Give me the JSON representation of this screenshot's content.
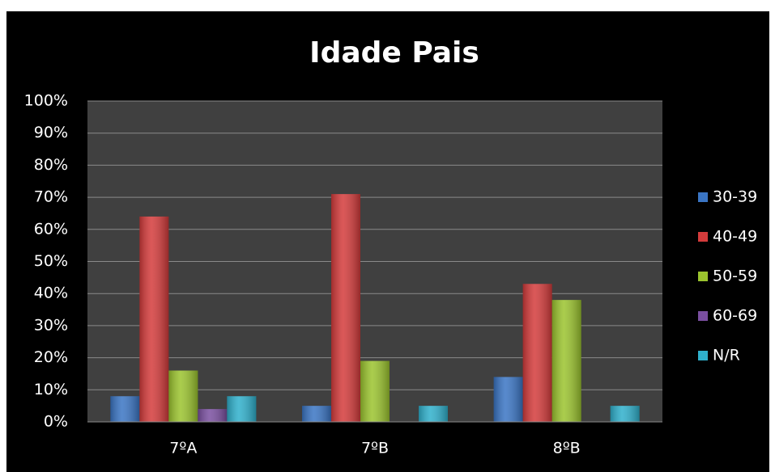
{
  "chart_data": {
    "type": "bar",
    "title": "Idade Pais",
    "categories": [
      "7ºA",
      "7ºB",
      "8ºB"
    ],
    "series": [
      {
        "name": "30-39",
        "color": "#3a75c4",
        "values": [
          8,
          5,
          14
        ]
      },
      {
        "name": "40-49",
        "color": "#d43b3b",
        "values": [
          64,
          71,
          43
        ]
      },
      {
        "name": "50-59",
        "color": "#9bc42e",
        "values": [
          16,
          19,
          38
        ]
      },
      {
        "name": "60-69",
        "color": "#7a4fa0",
        "values": [
          4,
          0,
          0
        ]
      },
      {
        "name": "N/R",
        "color": "#2fb0cc",
        "values": [
          8,
          5,
          5
        ]
      }
    ],
    "ylim": [
      0,
      100
    ],
    "yticks": [
      {
        "value": 0,
        "label": "0%"
      },
      {
        "value": 10,
        "label": "10%"
      },
      {
        "value": 20,
        "label": "20%"
      },
      {
        "value": 30,
        "label": "30%"
      },
      {
        "value": 40,
        "label": "40%"
      },
      {
        "value": 50,
        "label": "50%"
      },
      {
        "value": 60,
        "label": "60%"
      },
      {
        "value": 70,
        "label": "70%"
      },
      {
        "value": 80,
        "label": "80%"
      },
      {
        "value": 90,
        "label": "90%"
      },
      {
        "value": 100,
        "label": "100%"
      }
    ],
    "grid": true,
    "legend": "right"
  }
}
